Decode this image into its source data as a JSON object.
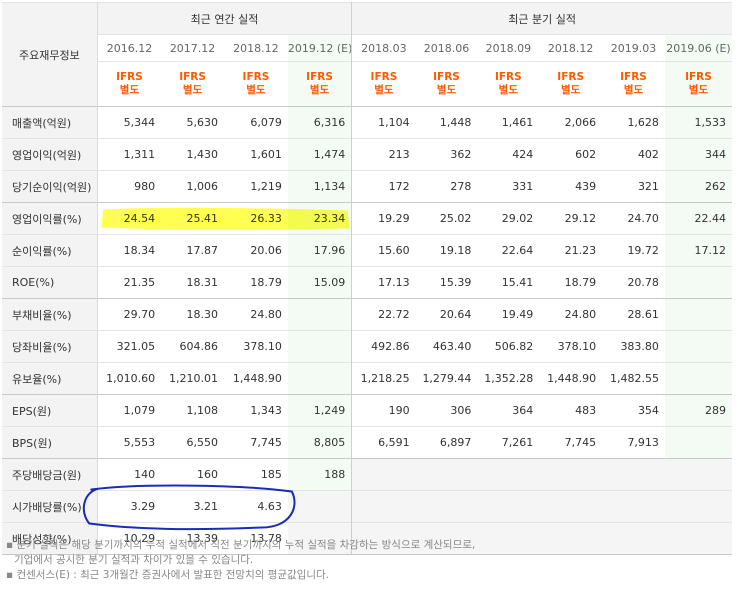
{
  "header": {
    "row_label": "주요재무정보",
    "annual_title": "최근 연간 실적",
    "quarter_title": "최근 분기 실적",
    "annual_periods": [
      "2016.12",
      "2017.12",
      "2018.12",
      "2019.12 (E)"
    ],
    "quarter_periods": [
      "2018.03",
      "2018.06",
      "2018.09",
      "2018.12",
      "2019.03",
      "2019.06 (E)"
    ],
    "ifrs_line1": "IFRS",
    "ifrs_line2": "별도"
  },
  "rows": [
    {
      "label": "매출액(억원)",
      "annual": [
        "5,344",
        "5,630",
        "6,079",
        "6,316"
      ],
      "quarter": [
        "1,104",
        "1,448",
        "1,461",
        "2,066",
        "1,628",
        "1,533"
      ]
    },
    {
      "label": "영업이익(억원)",
      "annual": [
        "1,311",
        "1,430",
        "1,601",
        "1,474"
      ],
      "quarter": [
        "213",
        "362",
        "424",
        "602",
        "402",
        "344"
      ]
    },
    {
      "label": "당기순이익(억원)",
      "annual": [
        "980",
        "1,006",
        "1,219",
        "1,134"
      ],
      "quarter": [
        "172",
        "278",
        "331",
        "439",
        "321",
        "262"
      ]
    },
    {
      "label": "영업이익률(%)",
      "annual": [
        "24.54",
        "25.41",
        "26.33",
        "23.34"
      ],
      "quarter": [
        "19.29",
        "25.02",
        "29.02",
        "29.12",
        "24.70",
        "22.44"
      ]
    },
    {
      "label": "순이익률(%)",
      "annual": [
        "18.34",
        "17.87",
        "20.06",
        "17.96"
      ],
      "quarter": [
        "15.60",
        "19.18",
        "22.64",
        "21.23",
        "19.72",
        "17.12"
      ]
    },
    {
      "label": "ROE(%)",
      "annual": [
        "21.35",
        "18.31",
        "18.79",
        "15.09"
      ],
      "quarter": [
        "17.13",
        "15.39",
        "15.41",
        "18.79",
        "20.78",
        ""
      ]
    },
    {
      "label": "부채비율(%)",
      "annual": [
        "29.70",
        "18.30",
        "24.80",
        ""
      ],
      "quarter": [
        "22.72",
        "20.64",
        "19.49",
        "24.80",
        "28.61",
        ""
      ]
    },
    {
      "label": "당좌비율(%)",
      "annual": [
        "321.05",
        "604.86",
        "378.10",
        ""
      ],
      "quarter": [
        "492.86",
        "463.40",
        "506.82",
        "378.10",
        "383.80",
        ""
      ]
    },
    {
      "label": "유보율(%)",
      "annual": [
        "1,010.60",
        "1,210.01",
        "1,448.90",
        ""
      ],
      "quarter": [
        "1,218.25",
        "1,279.44",
        "1,352.28",
        "1,448.90",
        "1,482.55",
        ""
      ]
    },
    {
      "label": "EPS(원)",
      "annual": [
        "1,079",
        "1,108",
        "1,343",
        "1,249"
      ],
      "quarter": [
        "190",
        "306",
        "364",
        "483",
        "354",
        "289"
      ]
    },
    {
      "label": "BPS(원)",
      "annual": [
        "5,553",
        "6,550",
        "7,745",
        "8,805"
      ],
      "quarter": [
        "6,591",
        "6,897",
        "7,261",
        "7,745",
        "7,913",
        ""
      ]
    },
    {
      "label": "주당배당금(원)",
      "annual": [
        "140",
        "160",
        "185",
        "188"
      ],
      "quarter": [
        "",
        "",
        "",
        "",
        "",
        ""
      ]
    },
    {
      "label": "시가배당률(%)",
      "annual": [
        "3.29",
        "3.21",
        "4.63",
        ""
      ],
      "quarter": [
        "",
        "",
        "",
        "",
        "",
        ""
      ]
    },
    {
      "label": "배당성향(%)",
      "annual": [
        "10.29",
        "13.39",
        "13.78",
        ""
      ],
      "quarter": [
        "",
        "",
        "",
        "",
        "",
        ""
      ]
    }
  ],
  "notes": [
    "분기 실적은 해당 분기까지의 누적 실적에서 직전 분기까지의 누적 실적을 차감하는 방식으로 계산되므로,",
    "기업에서 공시한 분기 실적과 차이가 있을 수 있습니다.",
    "컨센서스(E) : 최근 3개월간 증권사에서 발표한 전망치의 평균값입니다."
  ],
  "annotations": {
    "highlight_color": "#ffff33",
    "circle_color": "#1a2db8"
  }
}
